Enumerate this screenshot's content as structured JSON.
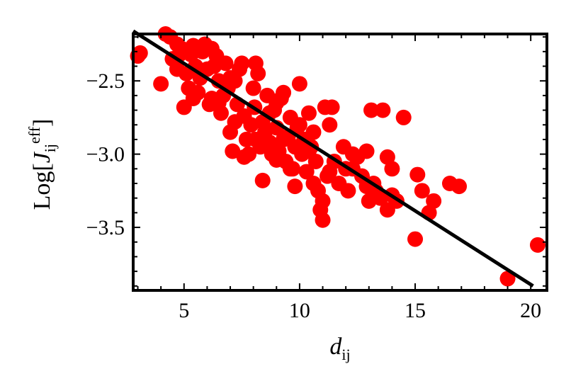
{
  "chart_data": {
    "type": "scatter",
    "xlabel": {
      "main": "d",
      "sub": "ij"
    },
    "ylabel": {
      "prefix": "Log[",
      "main": "J",
      "sub": "ij",
      "sup": "eff",
      "suffix": "]"
    },
    "xlim": [
      2.8,
      20.7
    ],
    "ylim": [
      -3.93,
      -2.18
    ],
    "x_ticks": [
      5,
      10,
      15,
      20
    ],
    "y_ticks": [
      -2.5,
      -3.0,
      -3.5
    ],
    "x_tick_labels": [
      "5",
      "10",
      "15",
      "20"
    ],
    "y_tick_labels": [
      "−2.5",
      "−3.0",
      "−3.5"
    ],
    "grid": false,
    "fit_line": {
      "x": [
        2.8,
        20.1
      ],
      "y": [
        -2.16,
        -3.9
      ],
      "color": "#000000"
    },
    "point_color": "#ff0000",
    "points": [
      [
        3.0,
        -2.33
      ],
      [
        3.1,
        -2.31
      ],
      [
        4.0,
        -2.52
      ],
      [
        4.2,
        -2.18
      ],
      [
        4.4,
        -2.2
      ],
      [
        4.5,
        -2.35
      ],
      [
        4.7,
        -2.25
      ],
      [
        4.8,
        -2.32
      ],
      [
        4.9,
        -2.28
      ],
      [
        5.0,
        -2.68
      ],
      [
        5.1,
        -2.45
      ],
      [
        5.2,
        -2.55
      ],
      [
        5.3,
        -2.32
      ],
      [
        5.4,
        -2.26
      ],
      [
        5.5,
        -2.4
      ],
      [
        5.6,
        -2.58
      ],
      [
        5.7,
        -2.48
      ],
      [
        5.8,
        -2.3
      ],
      [
        5.9,
        -2.25
      ],
      [
        6.0,
        -2.42
      ],
      [
        6.1,
        -2.66
      ],
      [
        6.2,
        -2.28
      ],
      [
        6.3,
        -2.4
      ],
      [
        6.4,
        -2.33
      ],
      [
        6.5,
        -2.65
      ],
      [
        6.6,
        -2.72
      ],
      [
        6.7,
        -2.6
      ],
      [
        6.8,
        -2.38
      ],
      [
        6.9,
        -2.55
      ],
      [
        7.0,
        -2.85
      ],
      [
        7.1,
        -2.98
      ],
      [
        7.2,
        -2.5
      ],
      [
        7.3,
        -2.66
      ],
      [
        7.4,
        -2.42
      ],
      [
        7.5,
        -2.38
      ],
      [
        7.6,
        -2.74
      ],
      [
        7.7,
        -2.9
      ],
      [
        7.8,
        -3.0
      ],
      [
        7.9,
        -2.8
      ],
      [
        8.0,
        -2.55
      ],
      [
        8.05,
        -2.68
      ],
      [
        8.1,
        -2.38
      ],
      [
        8.2,
        -2.45
      ],
      [
        8.3,
        -2.95
      ],
      [
        8.4,
        -2.78
      ],
      [
        8.5,
        -2.85
      ],
      [
        8.6,
        -2.6
      ],
      [
        8.7,
        -2.92
      ],
      [
        8.8,
        -3.0
      ],
      [
        8.9,
        -2.7
      ],
      [
        9.0,
        -2.82
      ],
      [
        9.1,
        -2.98
      ],
      [
        9.2,
        -2.62
      ],
      [
        9.3,
        -2.9
      ],
      [
        9.4,
        -3.05
      ],
      [
        9.5,
        -2.88
      ],
      [
        9.6,
        -2.75
      ],
      [
        9.7,
        -3.1
      ],
      [
        9.8,
        -2.95
      ],
      [
        9.9,
        -2.82
      ],
      [
        10.0,
        -2.52
      ],
      [
        10.1,
        -3.0
      ],
      [
        10.2,
        -2.9
      ],
      [
        10.3,
        -3.12
      ],
      [
        10.4,
        -2.72
      ],
      [
        10.5,
        -2.95
      ],
      [
        10.6,
        -2.85
      ],
      [
        10.7,
        -3.05
      ],
      [
        10.8,
        -3.25
      ],
      [
        10.9,
        -3.38
      ],
      [
        11.0,
        -3.45
      ],
      [
        11.1,
        -2.68
      ],
      [
        11.2,
        -3.15
      ],
      [
        11.3,
        -2.8
      ],
      [
        11.4,
        -2.68
      ],
      [
        11.5,
        -3.05
      ],
      [
        11.7,
        -3.2
      ],
      [
        11.9,
        -2.95
      ],
      [
        12.0,
        -3.1
      ],
      [
        12.1,
        -3.25
      ],
      [
        12.3,
        -3.1
      ],
      [
        12.5,
        -3.02
      ],
      [
        12.7,
        -3.15
      ],
      [
        12.9,
        -2.98
      ],
      [
        13.0,
        -3.32
      ],
      [
        13.1,
        -2.7
      ],
      [
        13.2,
        -3.2
      ],
      [
        13.3,
        -3.25
      ],
      [
        13.5,
        -3.3
      ],
      [
        13.6,
        -2.7
      ],
      [
        13.8,
        -3.38
      ],
      [
        14.0,
        -3.1
      ],
      [
        14.2,
        -3.32
      ],
      [
        14.5,
        -2.75
      ],
      [
        15.0,
        -3.58
      ],
      [
        15.1,
        -3.14
      ],
      [
        15.3,
        -3.25
      ],
      [
        15.6,
        -3.4
      ],
      [
        15.8,
        -3.32
      ],
      [
        16.5,
        -3.2
      ],
      [
        16.9,
        -3.22
      ],
      [
        19.0,
        -3.85
      ],
      [
        20.3,
        -3.62
      ],
      [
        6.2,
        -2.62
      ],
      [
        7.0,
        -2.48
      ],
      [
        7.6,
        -3.02
      ],
      [
        8.4,
        -3.18
      ],
      [
        9.0,
        -3.04
      ],
      [
        9.6,
        -3.1
      ],
      [
        10.4,
        -2.98
      ],
      [
        11.0,
        -3.32
      ],
      [
        12.3,
        -3.0
      ],
      [
        12.9,
        -3.22
      ],
      [
        14.0,
        -3.28
      ],
      [
        9.3,
        -2.58
      ],
      [
        10.0,
        -2.8
      ],
      [
        8.1,
        -2.9
      ],
      [
        7.2,
        -2.78
      ],
      [
        6.5,
        -2.5
      ],
      [
        5.4,
        -2.62
      ],
      [
        4.7,
        -2.42
      ],
      [
        9.8,
        -3.22
      ],
      [
        10.6,
        -3.2
      ],
      [
        11.3,
        -3.12
      ],
      [
        8.7,
        -2.72
      ],
      [
        9.0,
        -2.65
      ],
      [
        13.8,
        -3.02
      ]
    ]
  }
}
